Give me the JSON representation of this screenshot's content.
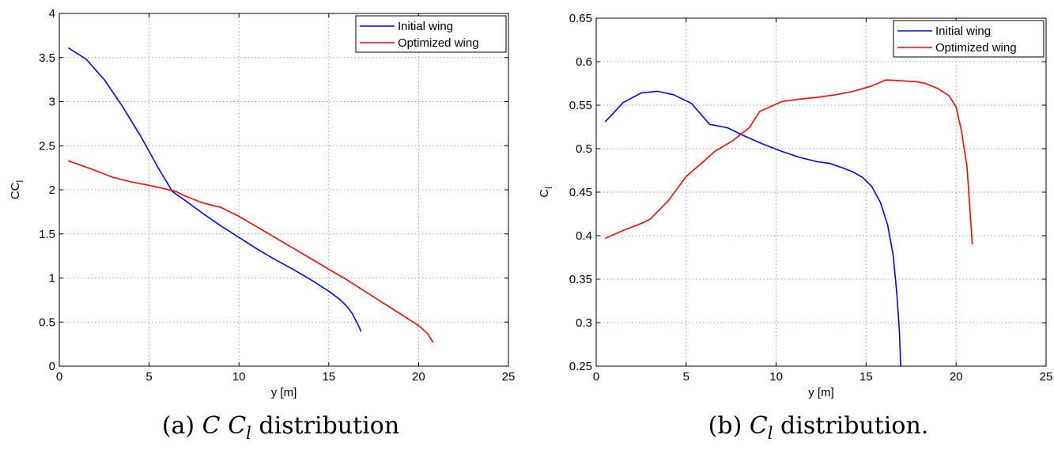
{
  "chart_data": [
    {
      "type": "line",
      "xlabel": "y [m]",
      "ylabel_main": "CC",
      "ylabel_sub": "l",
      "xlim": [
        0,
        25
      ],
      "ylim": [
        0,
        4
      ],
      "xticks": [
        0,
        5,
        10,
        15,
        20,
        25
      ],
      "yticks": [
        0,
        0.5,
        1,
        1.5,
        2,
        2.5,
        3,
        3.5,
        4
      ],
      "xtick_labels": [
        "0",
        "5",
        "10",
        "15",
        "20",
        "25"
      ],
      "ytick_labels": [
        "0",
        "0.5",
        "1",
        "1.5",
        "2",
        "2.5",
        "3",
        "3.5",
        "4"
      ],
      "grid": true,
      "legend_position": "top-right",
      "caption": {
        "prefix": "(a) ",
        "v1": "C",
        "v2": "C",
        "v2sub": "l",
        "suffix": " distribution"
      },
      "series": [
        {
          "name": "Initial wing",
          "color": "#0000ff",
          "x": [
            0.5,
            1.5,
            2.5,
            3.5,
            4.5,
            5.5,
            6.3,
            7.0,
            8.0,
            9.0,
            10.0,
            11.0,
            12.0,
            13.0,
            14.0,
            15.0,
            15.6,
            16.0,
            16.3,
            16.5,
            16.7,
            16.8
          ],
          "y": [
            3.61,
            3.48,
            3.25,
            2.95,
            2.62,
            2.25,
            1.98,
            1.88,
            1.73,
            1.59,
            1.46,
            1.33,
            1.21,
            1.1,
            0.98,
            0.85,
            0.76,
            0.68,
            0.6,
            0.52,
            0.44,
            0.39
          ]
        },
        {
          "name": "Optimized wing",
          "color": "#ff0000",
          "x": [
            0.5,
            2.0,
            3.0,
            4.0,
            5.0,
            5.7,
            6.5,
            7.0,
            8.0,
            9.0,
            10.0,
            11.0,
            12.0,
            13.0,
            14.0,
            15.0,
            16.0,
            17.0,
            18.0,
            19.0,
            20.0,
            20.5,
            20.8
          ],
          "y": [
            2.33,
            2.22,
            2.14,
            2.09,
            2.05,
            2.02,
            1.98,
            1.93,
            1.85,
            1.8,
            1.7,
            1.58,
            1.46,
            1.34,
            1.22,
            1.1,
            0.98,
            0.85,
            0.72,
            0.59,
            0.46,
            0.37,
            0.27
          ]
        }
      ]
    },
    {
      "type": "line",
      "xlabel": "y [m]",
      "ylabel_main": "C",
      "ylabel_sub": "l",
      "xlim": [
        0,
        25
      ],
      "ylim": [
        0.25,
        0.65
      ],
      "xticks": [
        0,
        5,
        10,
        15,
        20,
        25
      ],
      "yticks": [
        0.25,
        0.3,
        0.35,
        0.4,
        0.45,
        0.5,
        0.55,
        0.6,
        0.65
      ],
      "xtick_labels": [
        "0",
        "5",
        "10",
        "15",
        "20",
        "25"
      ],
      "ytick_labels": [
        "0.25",
        "0.3",
        "0.35",
        "0.4",
        "0.45",
        "0.5",
        "0.55",
        "0.6",
        "0.65"
      ],
      "grid": true,
      "legend_position": "top-right",
      "caption": {
        "prefix": "(b) ",
        "v1": "",
        "v2": "C",
        "v2sub": "l",
        "suffix": " distribution."
      },
      "series": [
        {
          "name": "Initial wing",
          "color": "#0000ff",
          "x": [
            0.5,
            1.5,
            2.5,
            3.4,
            4.3,
            5.3,
            6.3,
            7.3,
            8.3,
            9.3,
            10.3,
            11.3,
            12.3,
            13.0,
            13.7,
            14.3,
            14.8,
            15.3,
            15.8,
            16.2,
            16.5,
            16.7,
            16.85,
            16.92
          ],
          "y": [
            0.531,
            0.553,
            0.564,
            0.566,
            0.562,
            0.552,
            0.528,
            0.524,
            0.514,
            0.505,
            0.497,
            0.49,
            0.485,
            0.483,
            0.478,
            0.473,
            0.467,
            0.457,
            0.438,
            0.412,
            0.378,
            0.335,
            0.29,
            0.25
          ]
        },
        {
          "name": "Optimized wing",
          "color": "#ff0000",
          "x": [
            0.5,
            1.5,
            2.5,
            3.0,
            4.0,
            5.0,
            6.0,
            6.6,
            7.5,
            8.5,
            9.1,
            10.3,
            11.3,
            12.3,
            13.3,
            14.3,
            15.3,
            16.1,
            17.0,
            17.8,
            18.3,
            19.0,
            19.6,
            20.0,
            20.3,
            20.6,
            20.9
          ],
          "y": [
            0.397,
            0.406,
            0.414,
            0.419,
            0.44,
            0.468,
            0.486,
            0.497,
            0.508,
            0.524,
            0.543,
            0.554,
            0.557,
            0.559,
            0.562,
            0.566,
            0.572,
            0.579,
            0.578,
            0.577,
            0.575,
            0.569,
            0.561,
            0.548,
            0.52,
            0.48,
            0.39
          ]
        }
      ]
    }
  ]
}
